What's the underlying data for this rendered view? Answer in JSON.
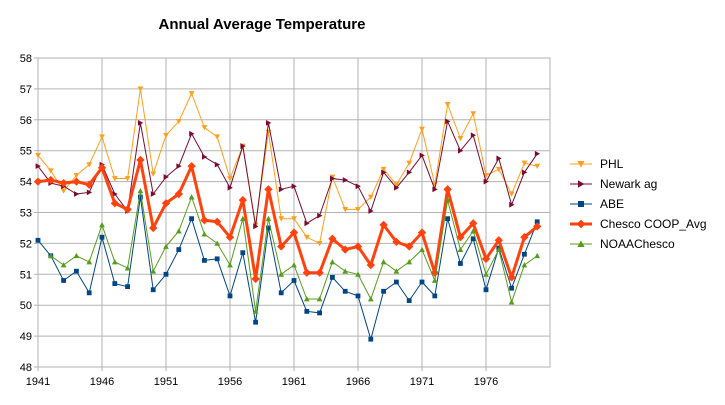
{
  "chart_data": {
    "type": "line",
    "title": "Annual Average Temperature",
    "xlabel": "",
    "ylabel": "",
    "xlim": [
      1941,
      1981
    ],
    "ylim": [
      48,
      58
    ],
    "x_ticks": [
      1941,
      1946,
      1951,
      1956,
      1961,
      1966,
      1971,
      1976
    ],
    "y_ticks": [
      48,
      49,
      50,
      51,
      52,
      53,
      54,
      55,
      56,
      57,
      58
    ],
    "grid": true,
    "legend_position": "right",
    "x": [
      1941,
      1942,
      1943,
      1944,
      1945,
      1946,
      1947,
      1948,
      1949,
      1950,
      1951,
      1952,
      1953,
      1954,
      1955,
      1956,
      1957,
      1958,
      1959,
      1960,
      1961,
      1962,
      1963,
      1964,
      1965,
      1966,
      1967,
      1968,
      1969,
      1970,
      1971,
      1972,
      1973,
      1974,
      1975,
      1976,
      1977,
      1978,
      1979,
      1980,
      1981
    ],
    "series": [
      {
        "name": "PHL",
        "color": "#ff9f1c",
        "marker": "triangle-down",
        "width": 1,
        "values": [
          54.85,
          54.35,
          53.7,
          54.2,
          54.55,
          55.45,
          54.1,
          54.1,
          57.0,
          54.25,
          55.5,
          55.95,
          56.85,
          55.75,
          55.45,
          54.1,
          55.15,
          52.6,
          55.6,
          52.8,
          52.8,
          52.2,
          52.0,
          54.15,
          53.1,
          53.1,
          53.5,
          54.4,
          53.9,
          54.6,
          55.7,
          53.9,
          56.5,
          55.4,
          56.2,
          54.2,
          54.4,
          53.6,
          54.6,
          54.5,
          null
        ]
      },
      {
        "name": "Newark ag",
        "color": "#7b0c2e",
        "marker": "triangle-right",
        "width": 1,
        "values": [
          54.5,
          53.95,
          53.85,
          53.6,
          53.65,
          54.55,
          53.6,
          53.05,
          55.9,
          53.6,
          54.15,
          54.5,
          55.55,
          54.8,
          54.55,
          53.8,
          55.15,
          52.55,
          55.9,
          53.75,
          53.85,
          52.65,
          52.9,
          54.1,
          54.05,
          53.85,
          53.05,
          54.3,
          53.8,
          54.3,
          54.85,
          53.75,
          55.95,
          55.0,
          55.5,
          54.0,
          54.75,
          53.25,
          54.3,
          54.9,
          null
        ]
      },
      {
        "name": "ABE",
        "color": "#004586",
        "marker": "square",
        "width": 1,
        "values": [
          52.1,
          51.6,
          50.8,
          51.1,
          50.4,
          52.2,
          50.7,
          50.6,
          53.5,
          50.5,
          51.0,
          51.8,
          52.8,
          51.45,
          51.5,
          50.3,
          51.7,
          49.45,
          52.5,
          50.4,
          50.8,
          49.8,
          49.75,
          50.9,
          50.45,
          50.3,
          48.9,
          50.45,
          50.75,
          50.15,
          50.75,
          50.3,
          52.8,
          51.35,
          52.15,
          50.5,
          51.85,
          50.55,
          51.65,
          52.7,
          null
        ]
      },
      {
        "name": "Chesco COOP_Avg",
        "color": "#ff420e",
        "marker": "diamond",
        "width": 3,
        "values": [
          54.0,
          54.05,
          53.95,
          54.0,
          53.9,
          54.45,
          53.3,
          53.1,
          54.7,
          52.5,
          53.3,
          53.6,
          54.5,
          52.75,
          52.7,
          52.2,
          53.4,
          50.85,
          53.75,
          51.9,
          52.35,
          51.05,
          51.05,
          52.15,
          51.8,
          51.9,
          51.3,
          52.6,
          52.05,
          51.9,
          52.35,
          51.05,
          53.75,
          52.2,
          52.65,
          51.5,
          52.1,
          50.9,
          52.2,
          52.55,
          null
        ]
      },
      {
        "name": "NOAAChesco",
        "color": "#579d1c",
        "marker": "triangle-up",
        "width": 1,
        "values": [
          null,
          51.6,
          51.3,
          51.6,
          51.4,
          52.6,
          51.4,
          51.2,
          53.7,
          51.1,
          51.9,
          52.4,
          53.5,
          52.3,
          52.0,
          51.3,
          52.8,
          49.8,
          52.8,
          51.0,
          51.3,
          50.2,
          50.2,
          51.4,
          51.1,
          51.0,
          50.2,
          51.4,
          51.1,
          51.4,
          51.8,
          50.8,
          53.4,
          51.8,
          52.4,
          51.0,
          51.8,
          50.1,
          51.3,
          51.6,
          null
        ]
      }
    ]
  }
}
